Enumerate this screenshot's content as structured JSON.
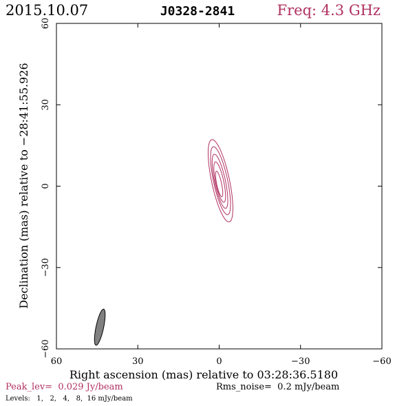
{
  "header": {
    "date": "2015.10.07",
    "source": "J0328-2841",
    "freq": "Freq: 4.3 GHz"
  },
  "colors": {
    "accent": "#b03060",
    "contour": "#b03060",
    "beam": "#808080",
    "text": "#000000"
  },
  "footer": {
    "peak": "Peak_lev=  0.029 Jy/beam",
    "noise": "Rms_noise=  0.2 mJy/beam",
    "levels": "Levels:   1,   2,   4,   8,  16 mJy/beam"
  },
  "chart_data": {
    "type": "contour",
    "xlabel": "Right ascension (mas) relative to 03:28:36.5180",
    "ylabel": "Declination (mas) relative to −28:41:55.926",
    "xlim": [
      60,
      -60
    ],
    "ylim": [
      -60,
      60
    ],
    "xticks": [
      60,
      30,
      0,
      -30,
      -60
    ],
    "yticks": [
      -60,
      -30,
      0,
      30,
      60
    ],
    "xtick_labels": [
      "60",
      "30",
      "0",
      "−30",
      "−60"
    ],
    "ytick_labels": [
      "−60",
      "−30",
      "0",
      "30",
      "60"
    ],
    "contour_levels_mJy": [
      1,
      2,
      4,
      8,
      16
    ],
    "peak_Jy_per_beam": 0.029,
    "rms_noise_mJy_per_beam": 0.2,
    "contours": [
      {
        "level": 1,
        "center": [
          -0.5,
          2.0
        ],
        "semi_major": 15.5,
        "semi_minor": 3.3,
        "pa_deg": 12
      },
      {
        "level": 2,
        "center": [
          -0.5,
          2.0
        ],
        "semi_major": 12.8,
        "semi_minor": 2.6,
        "pa_deg": 12
      },
      {
        "level": 4,
        "center": [
          -0.3,
          1.8
        ],
        "semi_major": 10.2,
        "semi_minor": 2.0,
        "pa_deg": 12
      },
      {
        "level": 8,
        "center": [
          -0.2,
          1.5
        ],
        "semi_major": 7.6,
        "semi_minor": 1.5,
        "pa_deg": 12
      },
      {
        "level": 16,
        "center": [
          0.0,
          0.8
        ],
        "semi_major": 4.8,
        "semi_minor": 0.9,
        "pa_deg": 12
      }
    ],
    "beam": {
      "center": [
        44,
        -52
      ],
      "semi_major": 6.8,
      "semi_minor": 1.4,
      "pa_deg": -12
    },
    "grid": false
  }
}
